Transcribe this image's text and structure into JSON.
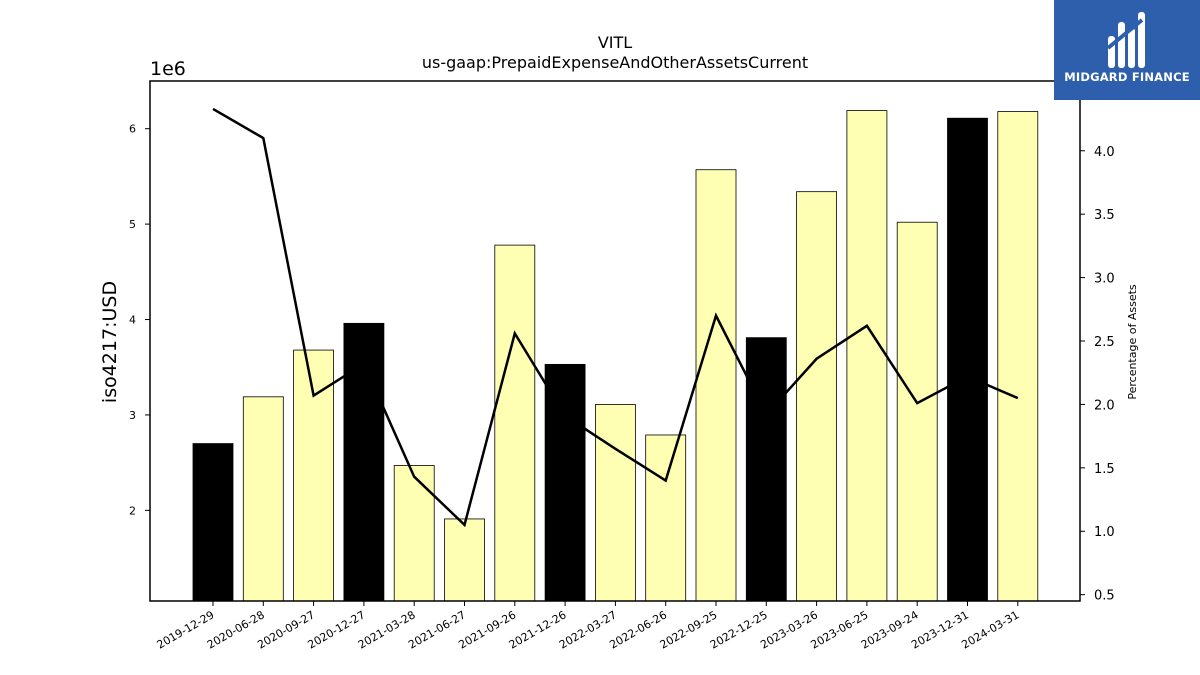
{
  "chart_data": {
    "type": "bar",
    "title": "VITL",
    "subtitle": "us-gaap:PrepaidExpenseAndOtherAssetsCurrent",
    "ylabel": "iso4217:USD",
    "y_offset_label": "1e6",
    "y2label": "Percentage of Assets",
    "categories": [
      "2019-12-29",
      "2020-06-28",
      "2020-09-27",
      "2020-12-27",
      "2021-03-28",
      "2021-06-27",
      "2021-09-26",
      "2021-12-26",
      "2022-03-27",
      "2022-06-26",
      "2022-09-25",
      "2022-12-25",
      "2023-03-26",
      "2023-06-25",
      "2023-09-24",
      "2023-12-31",
      "2024-03-31"
    ],
    "values": [
      2700000,
      3190000,
      3680000,
      3960000,
      2470000,
      1910000,
      4780000,
      3530000,
      3110000,
      2790000,
      5570000,
      3810000,
      5340000,
      6190000,
      5020000,
      6110000,
      6180000
    ],
    "bar_fill": [
      "#000000",
      "#ffffb3",
      "#ffffb3",
      "#000000",
      "#ffffb3",
      "#ffffb3",
      "#ffffb3",
      "#000000",
      "#ffffb3",
      "#ffffb3",
      "#ffffb3",
      "#000000",
      "#ffffb3",
      "#ffffb3",
      "#ffffb3",
      "#000000",
      "#ffffb3"
    ],
    "line_values": [
      4.33,
      4.1,
      2.07,
      2.32,
      1.43,
      1.05,
      2.56,
      1.91,
      1.65,
      1.4,
      2.7,
      1.92,
      2.36,
      2.62,
      2.01,
      2.22,
      2.05
    ],
    "ylim": [
      1050000,
      6500000
    ],
    "y2lim": [
      0.45,
      4.55
    ],
    "yticks": [
      2,
      3,
      4,
      5,
      6
    ],
    "y2ticks": [
      "0.5",
      "1.0",
      "1.5",
      "2.0",
      "2.5",
      "3.0",
      "3.5",
      "4.0"
    ],
    "colors": {
      "highlight_bar": "#000000",
      "normal_bar": "#ffffb3",
      "line": "#000000"
    }
  },
  "logo": {
    "text": "MIDGARD FINANCE",
    "bg": "#2d5fad"
  }
}
